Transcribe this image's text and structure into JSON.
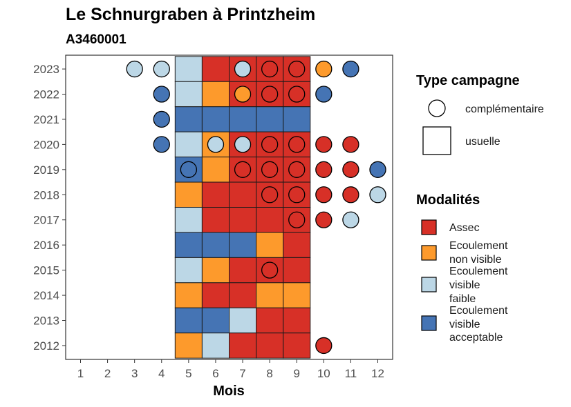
{
  "chart_data": {
    "type": "heatmap",
    "title": "Le Schnurgraben à Printzheim",
    "subtitle": "A3460001",
    "xlabel": "Mois",
    "ylabel": "",
    "x_ticks": [
      "1",
      "2",
      "3",
      "4",
      "5",
      "6",
      "7",
      "8",
      "9",
      "10",
      "11",
      "12"
    ],
    "y_ticks": [
      "2012",
      "2013",
      "2014",
      "2015",
      "2016",
      "2017",
      "2018",
      "2019",
      "2020",
      "2021",
      "2022",
      "2023"
    ],
    "legend_type": {
      "title": "Type campagne",
      "items": [
        {
          "key": "complementaire",
          "label": "complémentaire",
          "shape": "circle"
        },
        {
          "key": "usuelle",
          "label": "usuelle",
          "shape": "square"
        }
      ]
    },
    "legend_modalites": {
      "title": "Modalités",
      "items": [
        {
          "key": "assec",
          "lines": [
            "Assec"
          ],
          "color": "#d73027"
        },
        {
          "key": "env",
          "lines": [
            "Ecoulement",
            "non visible"
          ],
          "color": "#fd9a2c"
        },
        {
          "key": "evf",
          "lines": [
            "Ecoulement",
            "visible",
            "faible"
          ],
          "color": "#bcd7e6"
        },
        {
          "key": "eva",
          "lines": [
            "Ecoulement",
            "visible",
            "acceptable"
          ],
          "color": "#4574b4"
        }
      ]
    },
    "squares": [
      {
        "year": 2023,
        "month": 5,
        "mod": "evf"
      },
      {
        "year": 2023,
        "month": 6,
        "mod": "assec"
      },
      {
        "year": 2023,
        "month": 7,
        "mod": "assec"
      },
      {
        "year": 2023,
        "month": 8,
        "mod": "assec"
      },
      {
        "year": 2023,
        "month": 9,
        "mod": "assec"
      },
      {
        "year": 2022,
        "month": 5,
        "mod": "evf"
      },
      {
        "year": 2022,
        "month": 6,
        "mod": "env"
      },
      {
        "year": 2022,
        "month": 7,
        "mod": "assec"
      },
      {
        "year": 2022,
        "month": 8,
        "mod": "assec"
      },
      {
        "year": 2022,
        "month": 9,
        "mod": "assec"
      },
      {
        "year": 2021,
        "month": 5,
        "mod": "eva"
      },
      {
        "year": 2021,
        "month": 6,
        "mod": "eva"
      },
      {
        "year": 2021,
        "month": 7,
        "mod": "eva"
      },
      {
        "year": 2021,
        "month": 8,
        "mod": "eva"
      },
      {
        "year": 2021,
        "month": 9,
        "mod": "eva"
      },
      {
        "year": 2020,
        "month": 5,
        "mod": "evf"
      },
      {
        "year": 2020,
        "month": 6,
        "mod": "env"
      },
      {
        "year": 2020,
        "month": 7,
        "mod": "assec"
      },
      {
        "year": 2020,
        "month": 8,
        "mod": "assec"
      },
      {
        "year": 2020,
        "month": 9,
        "mod": "assec"
      },
      {
        "year": 2019,
        "month": 5,
        "mod": "eva"
      },
      {
        "year": 2019,
        "month": 6,
        "mod": "env"
      },
      {
        "year": 2019,
        "month": 7,
        "mod": "assec"
      },
      {
        "year": 2019,
        "month": 8,
        "mod": "assec"
      },
      {
        "year": 2019,
        "month": 9,
        "mod": "assec"
      },
      {
        "year": 2018,
        "month": 5,
        "mod": "env"
      },
      {
        "year": 2018,
        "month": 6,
        "mod": "assec"
      },
      {
        "year": 2018,
        "month": 7,
        "mod": "assec"
      },
      {
        "year": 2018,
        "month": 8,
        "mod": "assec"
      },
      {
        "year": 2018,
        "month": 9,
        "mod": "assec"
      },
      {
        "year": 2017,
        "month": 5,
        "mod": "evf"
      },
      {
        "year": 2017,
        "month": 6,
        "mod": "assec"
      },
      {
        "year": 2017,
        "month": 7,
        "mod": "assec"
      },
      {
        "year": 2017,
        "month": 8,
        "mod": "assec"
      },
      {
        "year": 2017,
        "month": 9,
        "mod": "assec"
      },
      {
        "year": 2016,
        "month": 5,
        "mod": "eva"
      },
      {
        "year": 2016,
        "month": 6,
        "mod": "eva"
      },
      {
        "year": 2016,
        "month": 7,
        "mod": "eva"
      },
      {
        "year": 2016,
        "month": 8,
        "mod": "env"
      },
      {
        "year": 2016,
        "month": 9,
        "mod": "assec"
      },
      {
        "year": 2015,
        "month": 5,
        "mod": "evf"
      },
      {
        "year": 2015,
        "month": 6,
        "mod": "env"
      },
      {
        "year": 2015,
        "month": 7,
        "mod": "assec"
      },
      {
        "year": 2015,
        "month": 8,
        "mod": "assec"
      },
      {
        "year": 2015,
        "month": 9,
        "mod": "assec"
      },
      {
        "year": 2014,
        "month": 5,
        "mod": "env"
      },
      {
        "year": 2014,
        "month": 6,
        "mod": "assec"
      },
      {
        "year": 2014,
        "month": 7,
        "mod": "assec"
      },
      {
        "year": 2014,
        "month": 8,
        "mod": "env"
      },
      {
        "year": 2014,
        "month": 9,
        "mod": "env"
      },
      {
        "year": 2013,
        "month": 5,
        "mod": "eva"
      },
      {
        "year": 2013,
        "month": 6,
        "mod": "eva"
      },
      {
        "year": 2013,
        "month": 7,
        "mod": "evf"
      },
      {
        "year": 2013,
        "month": 8,
        "mod": "assec"
      },
      {
        "year": 2013,
        "month": 9,
        "mod": "assec"
      },
      {
        "year": 2012,
        "month": 5,
        "mod": "env"
      },
      {
        "year": 2012,
        "month": 6,
        "mod": "evf"
      },
      {
        "year": 2012,
        "month": 7,
        "mod": "assec"
      },
      {
        "year": 2012,
        "month": 8,
        "mod": "assec"
      },
      {
        "year": 2012,
        "month": 9,
        "mod": "assec"
      }
    ],
    "circles": [
      {
        "year": 2023,
        "month": 3,
        "mod": "evf"
      },
      {
        "year": 2023,
        "month": 4,
        "mod": "evf"
      },
      {
        "year": 2023,
        "month": 7,
        "mod": "evf"
      },
      {
        "year": 2023,
        "month": 8,
        "mod": "assec"
      },
      {
        "year": 2023,
        "month": 9,
        "mod": "assec"
      },
      {
        "year": 2023,
        "month": 10,
        "mod": "env"
      },
      {
        "year": 2023,
        "month": 11,
        "mod": "eva"
      },
      {
        "year": 2022,
        "month": 4,
        "mod": "eva"
      },
      {
        "year": 2022,
        "month": 7,
        "mod": "env"
      },
      {
        "year": 2022,
        "month": 8,
        "mod": "assec"
      },
      {
        "year": 2022,
        "month": 9,
        "mod": "assec"
      },
      {
        "year": 2022,
        "month": 10,
        "mod": "eva"
      },
      {
        "year": 2021,
        "month": 4,
        "mod": "eva"
      },
      {
        "year": 2020,
        "month": 4,
        "mod": "eva"
      },
      {
        "year": 2020,
        "month": 6,
        "mod": "evf"
      },
      {
        "year": 2020,
        "month": 7,
        "mod": "evf"
      },
      {
        "year": 2020,
        "month": 8,
        "mod": "assec"
      },
      {
        "year": 2020,
        "month": 9,
        "mod": "assec"
      },
      {
        "year": 2020,
        "month": 10,
        "mod": "assec"
      },
      {
        "year": 2020,
        "month": 11,
        "mod": "assec"
      },
      {
        "year": 2019,
        "month": 5,
        "mod": "eva"
      },
      {
        "year": 2019,
        "month": 7,
        "mod": "assec"
      },
      {
        "year": 2019,
        "month": 8,
        "mod": "assec"
      },
      {
        "year": 2019,
        "month": 9,
        "mod": "assec"
      },
      {
        "year": 2019,
        "month": 10,
        "mod": "assec"
      },
      {
        "year": 2019,
        "month": 11,
        "mod": "assec"
      },
      {
        "year": 2019,
        "month": 12,
        "mod": "eva"
      },
      {
        "year": 2018,
        "month": 8,
        "mod": "assec"
      },
      {
        "year": 2018,
        "month": 9,
        "mod": "assec"
      },
      {
        "year": 2018,
        "month": 10,
        "mod": "assec"
      },
      {
        "year": 2018,
        "month": 11,
        "mod": "assec"
      },
      {
        "year": 2018,
        "month": 12,
        "mod": "evf"
      },
      {
        "year": 2017,
        "month": 9,
        "mod": "assec"
      },
      {
        "year": 2017,
        "month": 10,
        "mod": "assec"
      },
      {
        "year": 2017,
        "month": 11,
        "mod": "evf"
      },
      {
        "year": 2015,
        "month": 8,
        "mod": "assec"
      },
      {
        "year": 2012,
        "month": 10,
        "mod": "assec"
      }
    ]
  }
}
